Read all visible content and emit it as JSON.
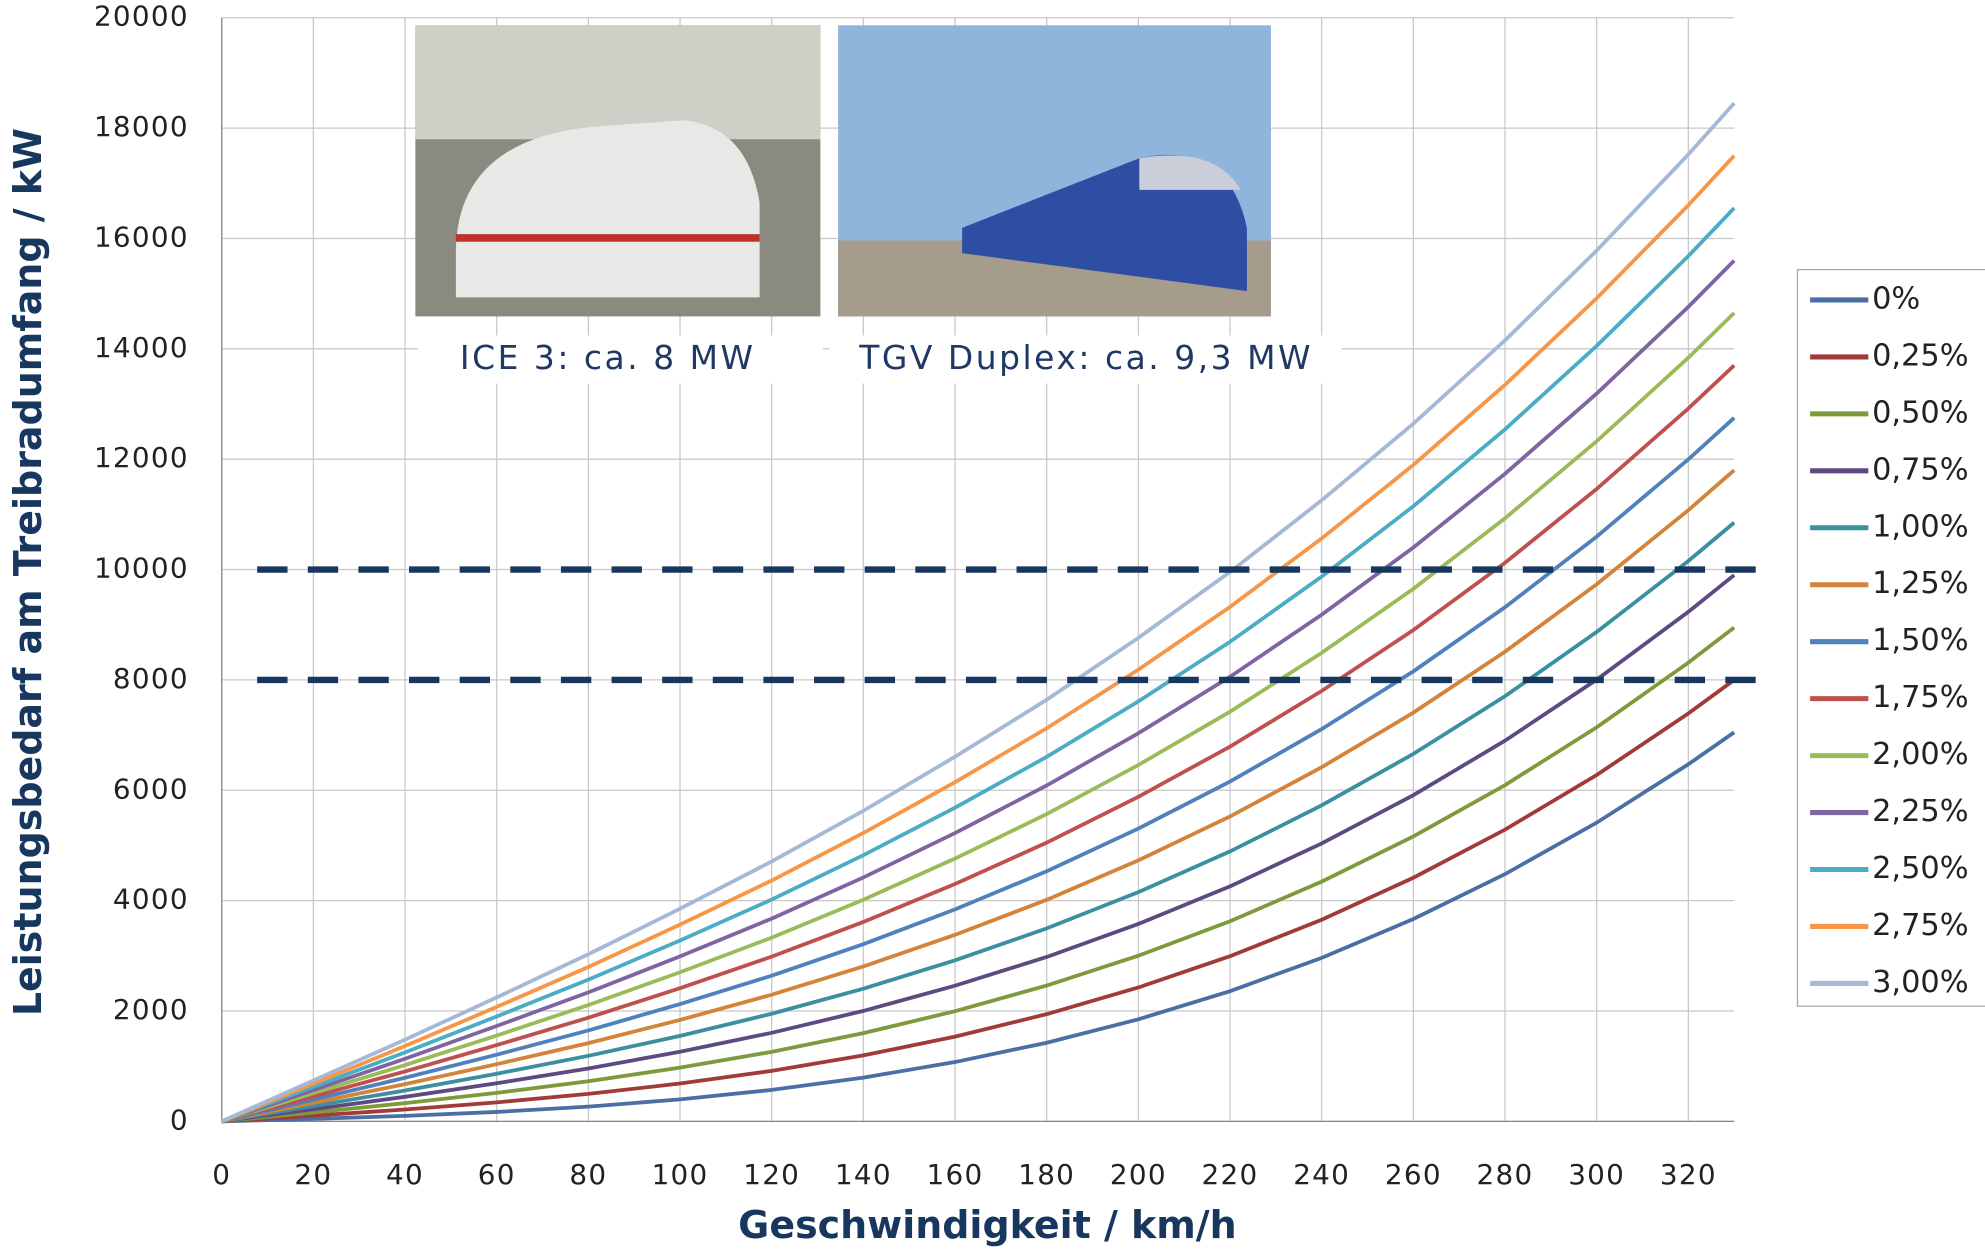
{
  "chart_data": {
    "type": "line",
    "x_label": "Geschwindigkeit / km/h",
    "y_label": "Leistungsbedarf am Treibradumfang / kW",
    "annotations": [
      "ICE 3: ca. 8 MW",
      "TGV Duplex: ca. 9,3 MW"
    ],
    "reference_lines": [
      8000,
      10000
    ],
    "reference_color": "#17375e",
    "x": [
      0,
      20,
      40,
      60,
      80,
      100,
      120,
      140,
      160,
      180,
      200,
      220,
      240,
      260,
      280,
      300,
      320,
      330
    ],
    "xlim": [
      0,
      330
    ],
    "xticks": [
      0,
      20,
      40,
      60,
      80,
      100,
      120,
      140,
      160,
      180,
      200,
      220,
      240,
      260,
      280,
      300,
      320
    ],
    "ylim": [
      0,
      20000
    ],
    "yticks": [
      0,
      2000,
      4000,
      6000,
      8000,
      10000,
      12000,
      14000,
      16000,
      18000,
      20000
    ],
    "grid": true,
    "legend": "right",
    "series": [
      {
        "name": "0%",
        "color": "#4a6fa5",
        "values": [
          0,
          46,
          100,
          171,
          268,
          398,
          570,
          793,
          1075,
          1425,
          1850,
          2360,
          2963,
          3667,
          4481,
          5413,
          6471,
          7050
        ]
      },
      {
        "name": "0,25%",
        "color": "#a33a3a",
        "values": [
          0,
          104,
          215,
          344,
          498,
          686,
          915,
          1196,
          1536,
          1943,
          2426,
          2993,
          3654,
          4415,
          5287,
          6277,
          7392,
          8000
        ]
      },
      {
        "name": "0,50%",
        "color": "#7f9a3a",
        "values": [
          0,
          162,
          330,
          517,
          728,
          974,
          1260,
          1599,
          1997,
          2461,
          3002,
          3626,
          4345,
          5163,
          6093,
          7141,
          8313,
          8950
        ]
      },
      {
        "name": "0,75%",
        "color": "#5e4a82",
        "values": [
          0,
          220,
          445,
          690,
          958,
          1262,
          1605,
          2002,
          2458,
          2979,
          3578,
          4259,
          5036,
          5911,
          6899,
          8005,
          9234,
          9900
        ]
      },
      {
        "name": "1,00%",
        "color": "#3a8fa0",
        "values": [
          0,
          278,
          560,
          863,
          1188,
          1550,
          1950,
          2405,
          2919,
          3497,
          4154,
          4892,
          5727,
          6659,
          7705,
          8869,
          10155,
          10850
        ]
      },
      {
        "name": "1,25%",
        "color": "#d3843a",
        "values": [
          0,
          336,
          675,
          1036,
          1418,
          1838,
          2295,
          2808,
          3380,
          4015,
          4730,
          5525,
          6418,
          7407,
          8511,
          9733,
          11076,
          11800
        ]
      },
      {
        "name": "1,50%",
        "color": "#4f81bd",
        "values": [
          0,
          394,
          790,
          1209,
          1648,
          2126,
          2640,
          3211,
          3841,
          4533,
          5306,
          6158,
          7109,
          8155,
          9317,
          10597,
          11997,
          12750
        ]
      },
      {
        "name": "1,75%",
        "color": "#c0504d",
        "values": [
          0,
          452,
          905,
          1382,
          1878,
          2414,
          2985,
          3614,
          4302,
          5051,
          5882,
          6791,
          7800,
          8903,
          10123,
          11461,
          12918,
          13700
        ]
      },
      {
        "name": "2,00%",
        "color": "#9bbb59",
        "values": [
          0,
          510,
          1020,
          1555,
          2108,
          2702,
          3330,
          4017,
          4763,
          5569,
          6458,
          7424,
          8491,
          9651,
          10929,
          12325,
          13839,
          14650
        ]
      },
      {
        "name": "2,25%",
        "color": "#8064a2",
        "values": [
          0,
          568,
          1135,
          1728,
          2338,
          2990,
          3675,
          4420,
          5224,
          6087,
          7034,
          8057,
          9182,
          10399,
          11735,
          13189,
          14760,
          15600
        ]
      },
      {
        "name": "2,50%",
        "color": "#4bacc6",
        "values": [
          0,
          626,
          1250,
          1901,
          2568,
          3278,
          4020,
          4823,
          5685,
          6605,
          7610,
          8690,
          9873,
          11147,
          12541,
          14053,
          15681,
          16550
        ]
      },
      {
        "name": "2,75%",
        "color": "#f79646",
        "values": [
          0,
          684,
          1365,
          2074,
          2798,
          3566,
          4365,
          5226,
          6146,
          7123,
          8186,
          9323,
          10564,
          11895,
          13347,
          14917,
          16602,
          17500
        ]
      },
      {
        "name": "3,00%",
        "color": "#a5b8d6",
        "values": [
          0,
          742,
          1480,
          2247,
          3028,
          3854,
          4710,
          5629,
          6607,
          7641,
          8762,
          9956,
          11255,
          12643,
          14153,
          15781,
          17523,
          18450
        ]
      }
    ]
  }
}
